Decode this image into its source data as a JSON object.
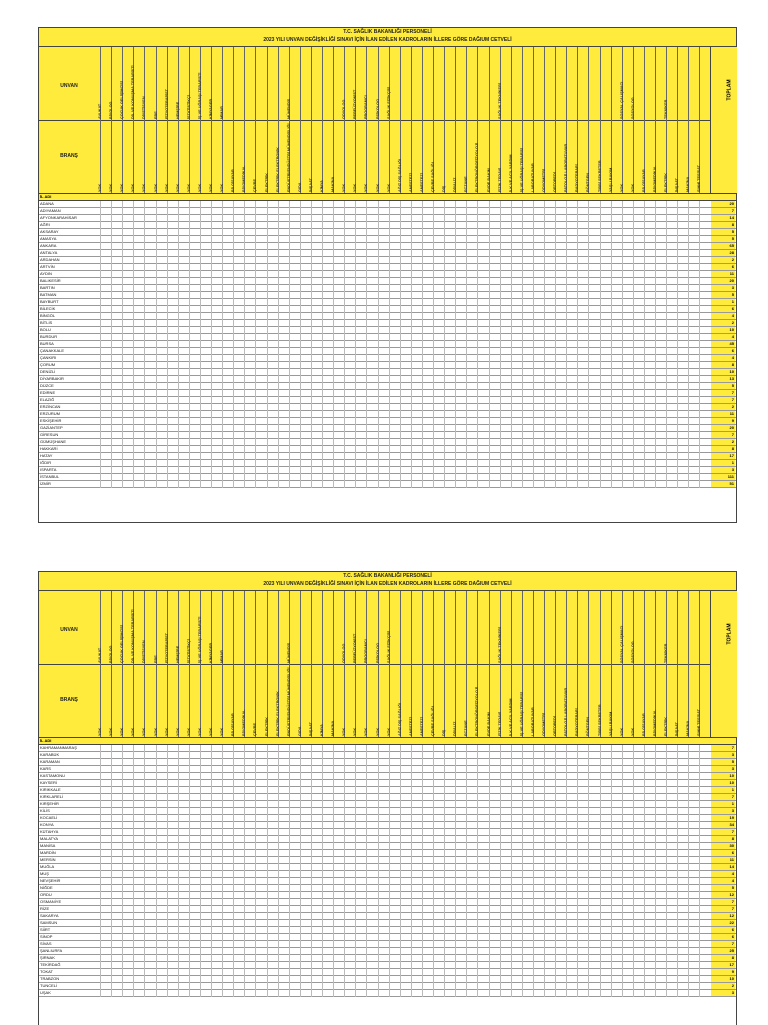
{
  "document": {
    "title_line1": "T.C. SAĞLIK BAKANLIĞI PERSONELİ",
    "title_line2": "2023 YILI UNVAN DEĞİŞİKLİĞİ SINAVI İÇİN İLAN EDİLEN KADROLARIN İLLERE GÖRE DAĞIUM CETVELİ",
    "label_unvan": "UNVAN",
    "label_brans": "BRANŞ",
    "label_il": "İL ADI",
    "label_toplam": "TOPLAM"
  },
  "columns": [
    {
      "unvan": "AVUKAT",
      "brans": "YOK"
    },
    {
      "unvan": "BİYOLOG",
      "brans": "YOK"
    },
    {
      "unvan": "ÇOCUK GELİŞİMCİSİ",
      "brans": "YOK"
    },
    {
      "unvan": "DİL VE KONUŞMA TERAPİSTİ",
      "brans": "YOK"
    },
    {
      "unvan": "DİYETİSYEN",
      "brans": "YOK"
    },
    {
      "unvan": "EBE",
      "brans": "YOK"
    },
    {
      "unvan": "FİZYOTERAPİST",
      "brans": "YOK"
    },
    {
      "unvan": "HEMŞİRE",
      "brans": "YOK"
    },
    {
      "unvan": "İSTATİSTİKÇİ",
      "brans": "YOK"
    },
    {
      "unvan": "İŞ VE UĞRAŞI TERAPİSTİ",
      "brans": "YOK"
    },
    {
      "unvan": "KİMYAGER",
      "brans": "YOK"
    },
    {
      "unvan": "MİMAR",
      "brans": "YOK"
    },
    {
      "unvan": "",
      "brans": "BİLGİSAYAR"
    },
    {
      "unvan": "",
      "brans": "BİYOMEDİKAL"
    },
    {
      "unvan": "",
      "brans": "ÇEVRE"
    },
    {
      "unvan": "",
      "brans": "ELEKTRİK"
    },
    {
      "unvan": "",
      "brans": "ELEKTRİK-ELEKTRONİK"
    },
    {
      "unvan": "MÜHENDİS",
      "brans": "ENDÜSTRİ/ENDÜSTRİ MÜHENDİSLİĞİ"
    },
    {
      "unvan": "",
      "brans": "GIDA"
    },
    {
      "unvan": "",
      "brans": "İNŞAAT"
    },
    {
      "unvan": "",
      "brans": "KİMYA"
    },
    {
      "unvan": "",
      "brans": "MAKİNA"
    },
    {
      "unvan": "ODYOLOG",
      "brans": "YOK"
    },
    {
      "unvan": "PERFÜZYONİST",
      "brans": "YOK"
    },
    {
      "unvan": "PROGRAMCI",
      "brans": "YOK"
    },
    {
      "unvan": "PSİKOLOG",
      "brans": "YOK"
    },
    {
      "unvan": "SAĞLIK FİZİKÇİSİ",
      "brans": "YOK"
    },
    {
      "unvan": "",
      "brans": "AĞIZ DİŞ SAĞLIĞI"
    },
    {
      "unvan": "",
      "brans": "ANESTEZİ"
    },
    {
      "unvan": "",
      "brans": "ANESTEZİ"
    },
    {
      "unvan": "",
      "brans": "ÇEVRE SAĞLIĞI"
    },
    {
      "unvan": "",
      "brans": "DİŞ"
    },
    {
      "unvan": "",
      "brans": "DİYALİZ"
    },
    {
      "unvan": "",
      "brans": "ECZANE"
    },
    {
      "unvan": "",
      "brans": "ELEKTRONÖROFİZYOLOJİ"
    },
    {
      "unvan": "",
      "brans": "EVDE BAKIM"
    },
    {
      "unvan": "SAĞLIK TEKNİKERİ",
      "brans": "FİZİK TEDAVİ"
    },
    {
      "unvan": "",
      "brans": "İLK VE ACİL YARDIM"
    },
    {
      "unvan": "",
      "brans": "İŞ VE UĞRAŞI TERAPİSİ"
    },
    {
      "unvan": "",
      "brans": "LABORATUVAR"
    },
    {
      "unvan": "",
      "brans": "ODYOMETRİ"
    },
    {
      "unvan": "",
      "brans": "ORTOPEDİ"
    },
    {
      "unvan": "",
      "brans": "PATOLOJİ LABORATUVAR"
    },
    {
      "unvan": "",
      "brans": "RADYOTERAPİ"
    },
    {
      "unvan": "",
      "brans": "RÖNTGEN"
    },
    {
      "unvan": "",
      "brans": "TIBBİ SEKRETER"
    },
    {
      "unvan": "",
      "brans": "YAŞLI BAKIM"
    },
    {
      "unvan": "SOSYAL ÇALIŞMACI",
      "brans": "YOK"
    },
    {
      "unvan": "SOSYOLOG",
      "brans": "YOK"
    },
    {
      "unvan": "",
      "brans": "BİLGİSAYAR"
    },
    {
      "unvan": "",
      "brans": "BİYOMEDİKAL"
    },
    {
      "unvan": "TEKNİKER",
      "brans": "ELEKTRİK"
    },
    {
      "unvan": "",
      "brans": "İNŞAAT"
    },
    {
      "unvan": "",
      "brans": "MAKİNA"
    },
    {
      "unvan": "",
      "brans": "SIHHİ TESİSAT"
    }
  ],
  "sheet1_rows": [
    {
      "il": "ADANA",
      "toplam": "20"
    },
    {
      "il": "ADIYAMAN",
      "toplam": "7"
    },
    {
      "il": "AFYONKARAHİSAR",
      "toplam": "14"
    },
    {
      "il": "AĞRI",
      "toplam": "8"
    },
    {
      "il": "AKSARAY",
      "toplam": "5"
    },
    {
      "il": "AMASYA",
      "toplam": "5"
    },
    {
      "il": "ANKARA",
      "toplam": "65"
    },
    {
      "il": "ANTALYA",
      "toplam": "28"
    },
    {
      "il": "ARDAHAN",
      "toplam": "2"
    },
    {
      "il": "ARTVİN",
      "toplam": "6"
    },
    {
      "il": "AYDIN",
      "toplam": "11"
    },
    {
      "il": "BALIKESİR",
      "toplam": "20"
    },
    {
      "il": "BARTIN",
      "toplam": "3"
    },
    {
      "il": "BATMAN",
      "toplam": "5"
    },
    {
      "il": "BAYBURT",
      "toplam": "1"
    },
    {
      "il": "BİLECİK",
      "toplam": "6"
    },
    {
      "il": "BİNGÖL",
      "toplam": "4"
    },
    {
      "il": "BİTLİS",
      "toplam": "2"
    },
    {
      "il": "BOLU",
      "toplam": "10"
    },
    {
      "il": "BURDUR",
      "toplam": "4"
    },
    {
      "il": "BURSA",
      "toplam": "45"
    },
    {
      "il": "ÇANAKKALE",
      "toplam": "6"
    },
    {
      "il": "ÇANKIRI",
      "toplam": "4"
    },
    {
      "il": "ÇORUM",
      "toplam": "8"
    },
    {
      "il": "DENİZLİ",
      "toplam": "10"
    },
    {
      "il": "DİYARBAKIR",
      "toplam": "13"
    },
    {
      "il": "DÜZCE",
      "toplam": "5"
    },
    {
      "il": "EDİRNE",
      "toplam": "7"
    },
    {
      "il": "ELAZIĞ",
      "toplam": "7"
    },
    {
      "il": "ERZİNCAN",
      "toplam": "2"
    },
    {
      "il": "ERZURUM",
      "toplam": "11"
    },
    {
      "il": "ESKİŞEHİR",
      "toplam": "9"
    },
    {
      "il": "GAZİANTEP",
      "toplam": "20"
    },
    {
      "il": "GİRESUN",
      "toplam": "7"
    },
    {
      "il": "GÜMÜŞHANE",
      "toplam": "2"
    },
    {
      "il": "HAKKARİ",
      "toplam": "8"
    },
    {
      "il": "HATAY",
      "toplam": "17"
    },
    {
      "il": "IĞDIR",
      "toplam": "1"
    },
    {
      "il": "ISPARTA",
      "toplam": "3"
    },
    {
      "il": "İSTANBUL",
      "toplam": "111"
    },
    {
      "il": "İZMİR",
      "toplam": "51"
    }
  ],
  "sheet2_rows": [
    {
      "il": "KAHRAMANMARAŞ",
      "toplam": "7"
    },
    {
      "il": "KARABÜK",
      "toplam": "3"
    },
    {
      "il": "KARAMAN",
      "toplam": "5"
    },
    {
      "il": "KARS",
      "toplam": "3"
    },
    {
      "il": "KASTAMONU",
      "toplam": "10"
    },
    {
      "il": "KAYSERİ",
      "toplam": "10"
    },
    {
      "il": "KIRIKKALE",
      "toplam": "1"
    },
    {
      "il": "KIRKLARELİ",
      "toplam": "7"
    },
    {
      "il": "KIRŞEHİR",
      "toplam": "1"
    },
    {
      "il": "KİLİS",
      "toplam": "3"
    },
    {
      "il": "KOCAELİ",
      "toplam": "19"
    },
    {
      "il": "KONYA",
      "toplam": "34"
    },
    {
      "il": "KÜTAHYA",
      "toplam": "7"
    },
    {
      "il": "MALATYA",
      "toplam": "8"
    },
    {
      "il": "MANİSA",
      "toplam": "30"
    },
    {
      "il": "MARDİN",
      "toplam": "6"
    },
    {
      "il": "MERSİN",
      "toplam": "11"
    },
    {
      "il": "MUĞLA",
      "toplam": "14"
    },
    {
      "il": "MUŞ",
      "toplam": "4"
    },
    {
      "il": "NEVŞEHİR",
      "toplam": "4"
    },
    {
      "il": "NİĞDE",
      "toplam": "5"
    },
    {
      "il": "ORDU",
      "toplam": "12"
    },
    {
      "il": "OSMANİYE",
      "toplam": "7"
    },
    {
      "il": "RİZE",
      "toplam": "7"
    },
    {
      "il": "SAKARYA",
      "toplam": "12"
    },
    {
      "il": "SAMSUN",
      "toplam": "22"
    },
    {
      "il": "SİİRT",
      "toplam": "6"
    },
    {
      "il": "SİNOP",
      "toplam": "6"
    },
    {
      "il": "SİVAS",
      "toplam": "7"
    },
    {
      "il": "ŞANLIURFA",
      "toplam": "25"
    },
    {
      "il": "ŞIRNAK",
      "toplam": "8"
    },
    {
      "il": "TEKİRDAĞ",
      "toplam": "17"
    },
    {
      "il": "TOKAT",
      "toplam": "9"
    },
    {
      "il": "TRABZON",
      "toplam": "10"
    },
    {
      "il": "TUNCELİ",
      "toplam": "2"
    },
    {
      "il": "UŞAK",
      "toplam": "3"
    }
  ],
  "cell_value": "1"
}
